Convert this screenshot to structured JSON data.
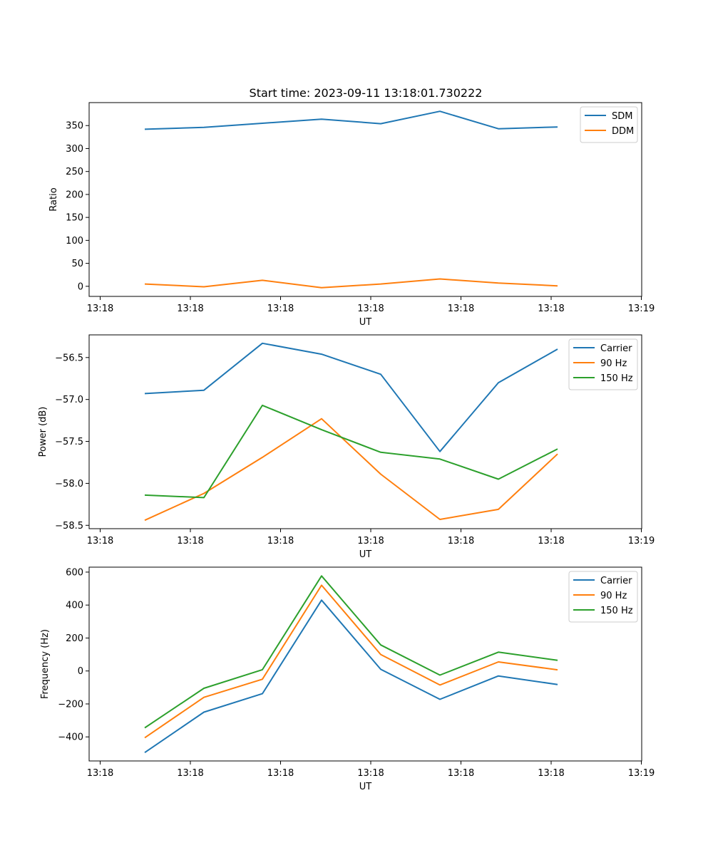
{
  "figure": {
    "suptitle": "Start time: 2023-09-11 13:18:01.730222"
  },
  "chart_data": [
    {
      "type": "line",
      "title": "Start time: 2023-09-11 13:18:01.730222",
      "xlabel": "UT",
      "ylabel": "Ratio",
      "x_tick_labels": [
        "13:18",
        "13:18",
        "13:18",
        "13:18",
        "13:18",
        "13:18",
        "13:19"
      ],
      "y_ticks": [
        0,
        50,
        100,
        150,
        200,
        250,
        300,
        350
      ],
      "y_tick_labels": [
        "0",
        "50",
        "100",
        "150",
        "200",
        "250",
        "300",
        "350"
      ],
      "ylim": [
        -22,
        400
      ],
      "legend": "top-right",
      "series": [
        {
          "name": "SDM",
          "color": "#1f77b4",
          "values": [
            342,
            346,
            355,
            364,
            354,
            381,
            343,
            347
          ]
        },
        {
          "name": "DDM",
          "color": "#ff7f0e",
          "values": [
            5,
            -1,
            13,
            -3,
            5,
            16,
            7,
            1
          ]
        }
      ]
    },
    {
      "type": "line",
      "title": "",
      "xlabel": "UT",
      "ylabel": "Power (dB)",
      "x_tick_labels": [
        "13:18",
        "13:18",
        "13:18",
        "13:18",
        "13:18",
        "13:18",
        "13:19"
      ],
      "y_ticks": [
        -58.5,
        -58.0,
        -57.5,
        -57.0,
        -56.5
      ],
      "y_tick_labels": [
        "−58.5",
        "−58.0",
        "−57.5",
        "−57.0",
        "−56.5"
      ],
      "ylim": [
        -58.54,
        -56.23
      ],
      "legend": "top-right",
      "series": [
        {
          "name": "Carrier",
          "color": "#1f77b4",
          "values": [
            -56.93,
            -56.89,
            -56.33,
            -56.46,
            -56.7,
            -57.62,
            -56.8,
            -56.4
          ]
        },
        {
          "name": "90 Hz",
          "color": "#ff7f0e",
          "values": [
            -58.44,
            -58.12,
            -57.69,
            -57.23,
            -57.89,
            -58.43,
            -58.31,
            -57.65
          ]
        },
        {
          "name": "150 Hz",
          "color": "#2ca02c",
          "values": [
            -58.14,
            -58.17,
            -57.07,
            -57.36,
            -57.63,
            -57.71,
            -57.95,
            -57.59
          ]
        }
      ]
    },
    {
      "type": "line",
      "title": "",
      "xlabel": "UT",
      "ylabel": "Frequency (Hz)",
      "x_tick_labels": [
        "13:18",
        "13:18",
        "13:18",
        "13:18",
        "13:18",
        "13:18",
        "13:19"
      ],
      "y_ticks": [
        -400,
        -200,
        0,
        200,
        400,
        600
      ],
      "y_tick_labels": [
        "−400",
        "−200",
        "0",
        "200",
        "400",
        "600"
      ],
      "ylim": [
        -546,
        630
      ],
      "legend": "top-right",
      "series": [
        {
          "name": "Carrier",
          "color": "#1f77b4",
          "values": [
            -495,
            -250,
            -138,
            430,
            10,
            -172,
            -30,
            -82
          ]
        },
        {
          "name": "90 Hz",
          "color": "#ff7f0e",
          "values": [
            -405,
            -160,
            -50,
            520,
            100,
            -85,
            55,
            7
          ]
        },
        {
          "name": "150 Hz",
          "color": "#2ca02c",
          "values": [
            -345,
            -105,
            8,
            577,
            158,
            -25,
            114,
            65
          ]
        }
      ]
    }
  ]
}
